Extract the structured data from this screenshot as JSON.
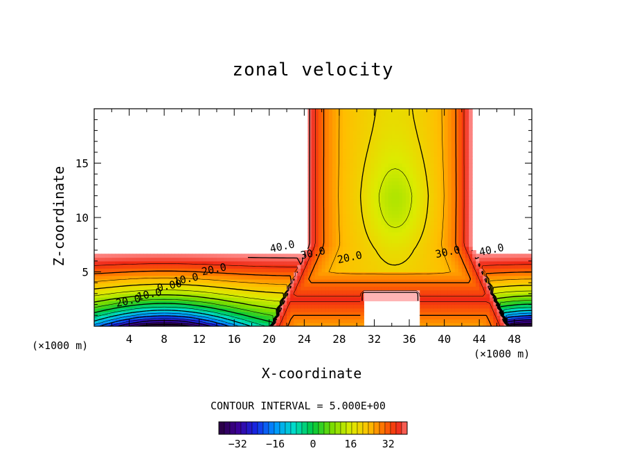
{
  "chart_data": {
    "type": "heatmap",
    "title": "zonal velocity",
    "xlabel": "X-coordinate",
    "ylabel": "Z-coordinate",
    "x_unit": "(×1000 m)",
    "z_unit": "(×1000 m)",
    "xlim": [
      0,
      50
    ],
    "ylim": [
      0,
      20
    ],
    "x_ticks": [
      4,
      8,
      12,
      16,
      20,
      24,
      28,
      32,
      36,
      40,
      44,
      48
    ],
    "y_ticks": [
      5,
      10,
      15
    ],
    "contour_interval_text": "CONTOUR INTERVAL = 5.000E+00",
    "colorbar": {
      "range": [
        -40,
        40
      ],
      "ticks": [
        -32,
        -16,
        0,
        16,
        32
      ],
      "colormap": "rainbow (purple-blue-cyan-green-yellow-orange-red-pink)"
    },
    "contour_labels": [
      {
        "text": "40.0",
        "x": 21.5,
        "z": 7.3
      },
      {
        "text": "30.0",
        "x": 25.0,
        "z": 6.7
      },
      {
        "text": "20.0",
        "x": 13.7,
        "z": 5.2
      },
      {
        "text": "10.0",
        "x": 10.5,
        "z": 4.3
      },
      {
        "text": "0.00",
        "x": 8.6,
        "z": 3.7
      },
      {
        "text": "10.0",
        "x": 6.3,
        "z": 2.9
      },
      {
        "text": "20.0",
        "x": 3.9,
        "z": 2.3
      },
      {
        "text": "20.0",
        "x": 29.2,
        "z": 6.3
      },
      {
        "text": "30.0",
        "x": 40.4,
        "z": 6.8
      },
      {
        "text": "40.0",
        "x": 45.4,
        "z": 7.0
      }
    ],
    "features": {
      "jet_core_center": {
        "x": 34.5,
        "z": 11,
        "value": 15
      },
      "low_level_minimum_left": {
        "x": 8,
        "z": 0,
        "value": -40
      },
      "low_level_minimum_right": {
        "x": 50,
        "z": 0,
        "value": -40
      }
    }
  }
}
